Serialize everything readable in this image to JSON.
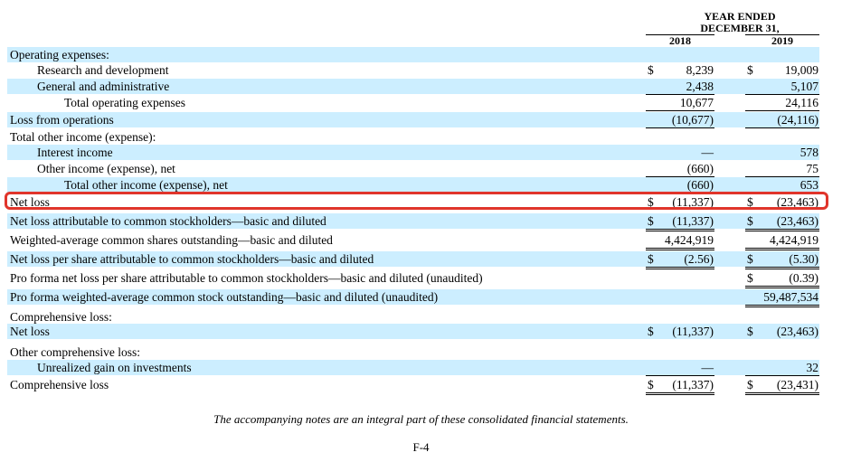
{
  "header": {
    "year_ended_line1": "YEAR ENDED",
    "year_ended_line2": "DECEMBER 31,",
    "col_2018": "2018",
    "col_2019": "2019"
  },
  "rows": [
    {
      "label": "Operating expenses:"
    },
    {
      "label": "Research and development",
      "c2018": "$",
      "v2018": "8,239",
      "c2019": "$",
      "v2019": "19,009"
    },
    {
      "label": "General and administrative",
      "v2018": "2,438",
      "v2019": "5,107"
    },
    {
      "label": "Total operating expenses",
      "v2018": "10,677",
      "v2019": "24,116"
    },
    {
      "label": "Loss from operations",
      "v2018": "(10,677)",
      "v2019": "(24,116)"
    },
    {
      "label": "Total other income (expense):"
    },
    {
      "label": "Interest income",
      "v2018": "—",
      "v2019": "578"
    },
    {
      "label": "Other income (expense), net",
      "v2018": "(660)",
      "v2019": "75"
    },
    {
      "label": "Total other income (expense), net",
      "v2018": "(660)",
      "v2019": "653"
    },
    {
      "label": "Net loss",
      "c2018": "$",
      "v2018": "(11,337)",
      "c2019": "$",
      "v2019": "(23,463)"
    },
    {
      "label": "Net loss attributable to common stockholders—basic and diluted",
      "c2018": "$",
      "v2018": "(11,337)",
      "c2019": "$",
      "v2019": "(23,463)"
    },
    {
      "label": "Weighted-average common shares outstanding—basic and diluted",
      "v2018": "4,424,919",
      "v2019": "4,424,919"
    },
    {
      "label": "Net loss per share attributable to common stockholders—basic and diluted",
      "c2018": "$",
      "v2018": "(2.56)",
      "c2019": "$",
      "v2019": "(5.30)"
    },
    {
      "label": "Pro forma net loss per share attributable to common stockholders—basic and diluted (unaudited)",
      "c2019": "$",
      "v2019": "(0.39)"
    },
    {
      "label": "Pro forma weighted-average common stock outstanding—basic and diluted (unaudited)",
      "v2019": "59,487,534"
    },
    {
      "label": "Comprehensive loss:"
    },
    {
      "label": "Net loss",
      "c2018": "$",
      "v2018": "(11,337)",
      "c2019": "$",
      "v2019": "(23,463)"
    },
    {
      "label": "Other comprehensive loss:"
    },
    {
      "label": "Unrealized gain on investments",
      "v2018": "—",
      "v2019": "32"
    },
    {
      "label": "Comprehensive loss",
      "c2018": "$",
      "v2018": "(11,337)",
      "c2019": "$",
      "v2019": "(23,431)"
    }
  ],
  "footnote": "The accompanying notes are an integral part of these consolidated financial statements.",
  "page_number": "F-4",
  "colors": {
    "row_shade": "#cceeff",
    "highlight_border": "#e0352b"
  }
}
